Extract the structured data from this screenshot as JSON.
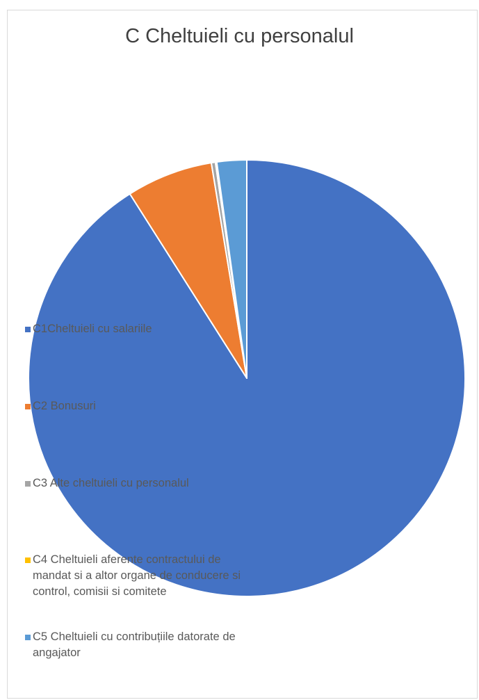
{
  "chart_data": {
    "type": "pie",
    "title": "C Cheltuieli cu personalul",
    "legend_position": "left",
    "start_angle_deg": 0,
    "direction": "clockwise",
    "slices": [
      {
        "name": "C1Cheltuieli cu salariile",
        "value": 91.0,
        "color": "#4472C4"
      },
      {
        "name": "C2 Bonusuri",
        "value": 6.4,
        "color": "#ED7D31"
      },
      {
        "name": "C3 Alte cheltuieli cu personalul",
        "value": 0.3,
        "color": "#A5A5A5"
      },
      {
        "name": "C4 Cheltuieli aferente contractului de mandat si a altor organe de conducere si control, comisii si comitete",
        "value": 0.1,
        "color": "#FFC000"
      },
      {
        "name": "C5 Cheltuieli cu contribuțiile datorate de angajator",
        "value": 2.2,
        "color": "#5B9BD5"
      }
    ]
  }
}
